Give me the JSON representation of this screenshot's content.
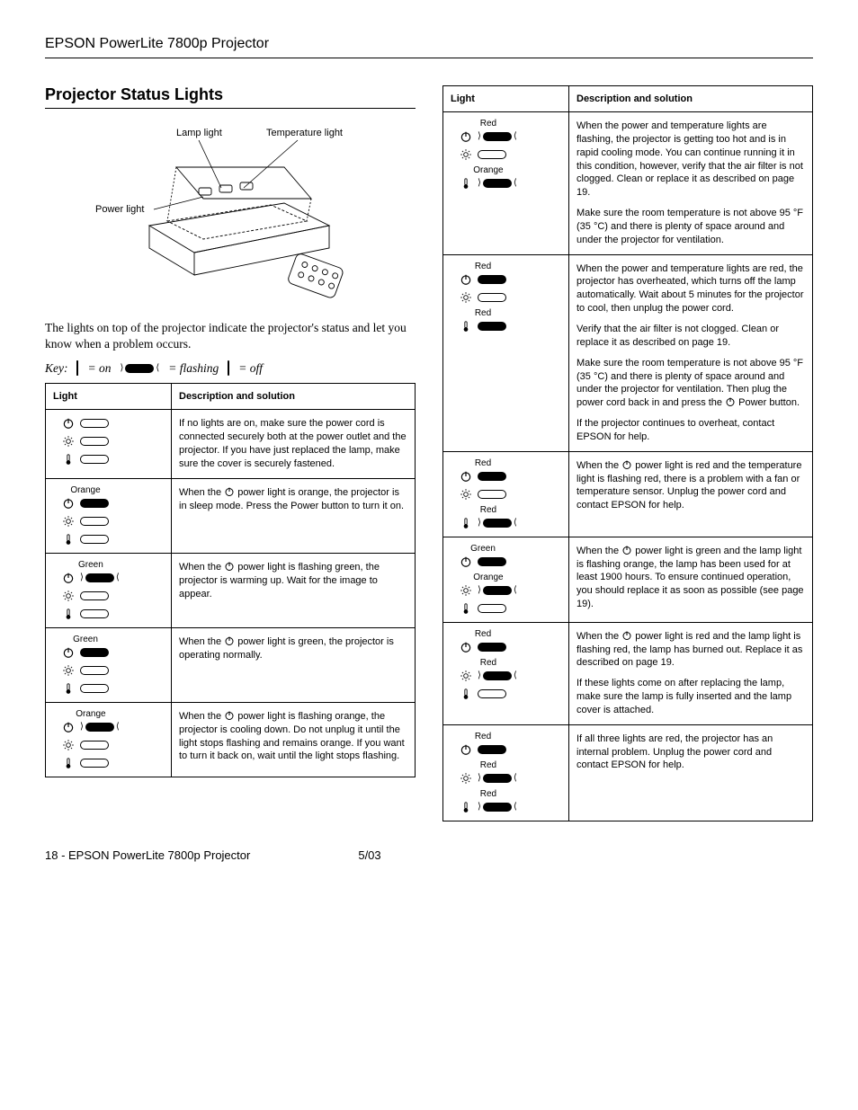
{
  "header": "EPSON PowerLite 7800p Projector",
  "section_title": "Projector Status Lights",
  "diagram_labels": {
    "lamp": "Lamp light",
    "temp": "Temperature light",
    "power": "Power light"
  },
  "intro": "The lights on top of the projector indicate the projector's status and let you know when a problem occurs.",
  "key": {
    "label": "Key:",
    "on": "= on",
    "flashing": "= flashing",
    "off": "= off"
  },
  "th_light": "Light",
  "th_desc": "Description and solution",
  "rows_left": [
    {
      "lights": [
        {
          "icon": "power",
          "state": "off",
          "label": ""
        },
        {
          "icon": "lamp",
          "state": "off",
          "label": ""
        },
        {
          "icon": "temp",
          "state": "off",
          "label": ""
        }
      ],
      "desc": [
        "If no lights are on, make sure the power cord is connected securely both at the power outlet and the projector. If you have just replaced the lamp, make sure the cover is securely fastened."
      ]
    },
    {
      "lights": [
        {
          "icon": "power",
          "state": "on",
          "label": "Orange"
        },
        {
          "icon": "lamp",
          "state": "off",
          "label": ""
        },
        {
          "icon": "temp",
          "state": "off",
          "label": ""
        }
      ],
      "desc": [
        "When the {P} power light is orange, the projector is in sleep mode. Press the Power button to turn it on."
      ]
    },
    {
      "lights": [
        {
          "icon": "power",
          "state": "flash",
          "label": "Green"
        },
        {
          "icon": "lamp",
          "state": "off",
          "label": ""
        },
        {
          "icon": "temp",
          "state": "off",
          "label": ""
        }
      ],
      "desc": [
        "When the {P} power light is flashing green, the projector is warming up. Wait for the image to appear."
      ]
    },
    {
      "lights": [
        {
          "icon": "power",
          "state": "on",
          "label": "Green"
        },
        {
          "icon": "lamp",
          "state": "off",
          "label": ""
        },
        {
          "icon": "temp",
          "state": "off",
          "label": ""
        }
      ],
      "desc": [
        "When the {P} power light is green, the projector is operating normally."
      ]
    },
    {
      "lights": [
        {
          "icon": "power",
          "state": "flash",
          "label": "Orange"
        },
        {
          "icon": "lamp",
          "state": "off",
          "label": ""
        },
        {
          "icon": "temp",
          "state": "off",
          "label": ""
        }
      ],
      "desc": [
        "When the {P} power light is flashing orange, the projector is cooling down. Do not unplug it until the light stops flashing and remains orange. If you want to turn it back on, wait until the light stops flashing."
      ]
    }
  ],
  "rows_right": [
    {
      "lights": [
        {
          "icon": "power",
          "state": "flash",
          "label": "Red"
        },
        {
          "icon": "lamp",
          "state": "off",
          "label": ""
        },
        {
          "icon": "temp",
          "state": "flash",
          "label": "Orange"
        }
      ],
      "desc": [
        "When the power and temperature lights are flashing, the projector is getting too hot and is in rapid cooling mode. You can continue running it in this condition, however, verify that the air filter is not clogged. Clean or replace it as described on page 19.",
        "Make sure the room temperature is not above 95 °F (35 °C) and there is plenty of space around and under the projector for ventilation."
      ]
    },
    {
      "lights": [
        {
          "icon": "power",
          "state": "on",
          "label": "Red"
        },
        {
          "icon": "lamp",
          "state": "off",
          "label": ""
        },
        {
          "icon": "temp",
          "state": "on",
          "label": "Red"
        }
      ],
      "desc": [
        "When the power and temperature lights are red, the projector has overheated, which turns off the lamp automatically. Wait about 5 minutes for the projector to cool, then unplug the power cord.",
        "Verify that the air filter is not clogged. Clean or replace it as described on page 19.",
        "Make sure the room temperature is not above 95 °F (35 °C) and there is plenty of space around and under the projector for ventilation. Then plug the power cord back in and press the {P} Power button.",
        "If the projector continues to overheat, contact EPSON for help."
      ]
    },
    {
      "lights": [
        {
          "icon": "power",
          "state": "on",
          "label": "Red"
        },
        {
          "icon": "lamp",
          "state": "off",
          "label": ""
        },
        {
          "icon": "temp",
          "state": "flash",
          "label": "Red"
        }
      ],
      "desc": [
        "When the {P} power light is red and the temperature light is flashing red, there is a problem with a fan or temperature sensor. Unplug the power cord and contact EPSON for help."
      ]
    },
    {
      "lights": [
        {
          "icon": "power",
          "state": "on",
          "label": "Green"
        },
        {
          "icon": "lamp",
          "state": "flash",
          "label": "Orange"
        },
        {
          "icon": "temp",
          "state": "off",
          "label": ""
        }
      ],
      "desc": [
        "When the {P} power light is green and the lamp light is flashing orange, the lamp has been used for at least 1900 hours. To ensure continued operation, you should replace it as soon as possible (see page 19)."
      ]
    },
    {
      "lights": [
        {
          "icon": "power",
          "state": "on",
          "label": "Red"
        },
        {
          "icon": "lamp",
          "state": "flash",
          "label": "Red"
        },
        {
          "icon": "temp",
          "state": "off",
          "label": ""
        }
      ],
      "desc": [
        "When the {P} power light is red and the lamp light is flashing red, the lamp has burned out. Replace it as described on page 19.",
        "If these lights come on after replacing the lamp, make sure the lamp is fully inserted and the lamp cover is attached."
      ]
    },
    {
      "lights": [
        {
          "icon": "power",
          "state": "on",
          "label": "Red"
        },
        {
          "icon": "lamp",
          "state": "flash",
          "label": "Red"
        },
        {
          "icon": "temp",
          "state": "flash",
          "label": "Red"
        }
      ],
      "desc": [
        "If all three lights are red, the projector has an internal problem. Unplug the power cord and contact EPSON for help."
      ]
    }
  ],
  "footer": {
    "left": "18 - EPSON PowerLite 7800p Projector",
    "right": "5/03"
  }
}
